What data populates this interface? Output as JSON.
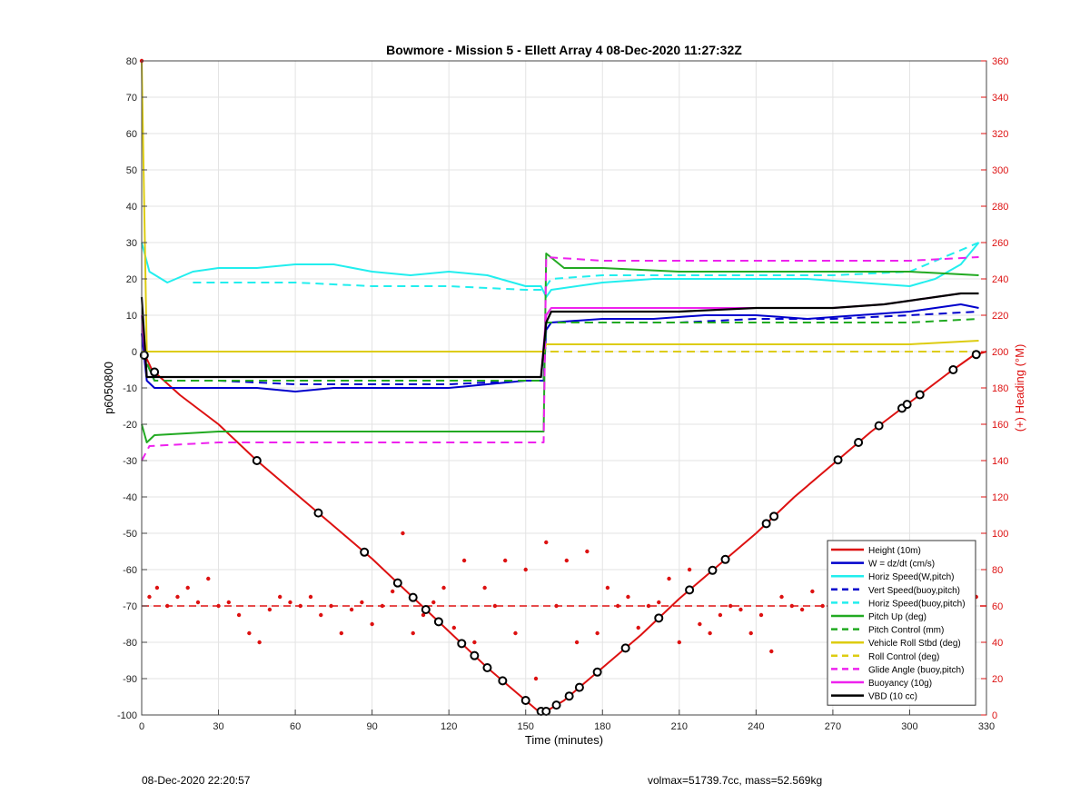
{
  "footer": {
    "timestamp": "08-Dec-2020 22:20:57",
    "stats": "volmax=51739.7cc, mass=52.569kg"
  },
  "chart_data": {
    "type": "line",
    "title": "Bowmore - Mission 5 - Ellett Array 4 08-Dec-2020 11:27:32Z",
    "xlabel": "Time (minutes)",
    "ylabel": "p6050800",
    "y2label": "(+) Heading (°M)",
    "xlim": [
      0,
      330
    ],
    "ylim": [
      -100,
      80
    ],
    "y2lim": [
      0,
      360
    ],
    "xticks": [
      0,
      30,
      60,
      90,
      120,
      150,
      180,
      210,
      240,
      270,
      300,
      330
    ],
    "yticks": [
      -100,
      -90,
      -80,
      -70,
      -60,
      -50,
      -40,
      -30,
      -20,
      -10,
      0,
      10,
      20,
      30,
      40,
      50,
      60,
      70,
      80
    ],
    "y2ticks": [
      0,
      20,
      40,
      60,
      80,
      100,
      120,
      140,
      160,
      180,
      200,
      220,
      240,
      260,
      280,
      300,
      320,
      340,
      360
    ],
    "grid": true,
    "legend_position": "bottom-right",
    "colors": {
      "red": "#dd1111",
      "blue": "#0000cc",
      "cyan": "#22eeee",
      "green": "#22aa22",
      "yellow": "#ddcc11",
      "magenta": "#ee22ee",
      "black": "#000000"
    },
    "series": [
      {
        "name": "Height (10m)",
        "color": "#dd1111",
        "style": "solid",
        "x": [
          0,
          2,
          4,
          15,
          30,
          45,
          60,
          75,
          90,
          105,
          120,
          135,
          150,
          155,
          158,
          165,
          180,
          195,
          210,
          225,
          240,
          255,
          270,
          285,
          300,
          315,
          325,
          330
        ],
        "y": [
          0,
          -2,
          -5,
          -12,
          -20,
          -30,
          -39,
          -48,
          -57,
          -67,
          -77,
          -87,
          -96,
          -99,
          -99,
          -96,
          -87,
          -78,
          -68,
          -59,
          -50,
          -40,
          -31,
          -22,
          -14,
          -6,
          -1,
          0
        ]
      },
      {
        "name": "W = dz/dt (cm/s)",
        "color": "#0000cc",
        "style": "solid",
        "x": [
          0,
          2,
          5,
          15,
          30,
          45,
          60,
          75,
          90,
          105,
          120,
          135,
          150,
          157,
          158,
          160,
          180,
          200,
          220,
          240,
          260,
          280,
          300,
          310,
          320,
          327
        ],
        "y": [
          5,
          -8,
          -10,
          -10,
          -10,
          -10,
          -11,
          -10,
          -10,
          -10,
          -10,
          -9,
          -8,
          -8,
          6,
          8,
          9,
          9,
          10,
          10,
          9,
          10,
          11,
          12,
          13,
          12
        ]
      },
      {
        "name": "Horiz Speed(W,pitch)",
        "color": "#22eeee",
        "style": "solid",
        "x": [
          0,
          3,
          10,
          20,
          30,
          45,
          60,
          75,
          90,
          105,
          120,
          135,
          150,
          156,
          158,
          160,
          180,
          200,
          220,
          240,
          260,
          280,
          300,
          310,
          320,
          327
        ],
        "y": [
          30,
          22,
          19,
          22,
          23,
          23,
          24,
          24,
          22,
          21,
          22,
          21,
          18,
          18,
          15,
          17,
          19,
          20,
          20,
          20,
          20,
          19,
          18,
          20,
          24,
          30
        ]
      },
      {
        "name": "Vert Speed(buoy,pitch)",
        "color": "#0000cc",
        "style": "dashed",
        "x": [
          0,
          5,
          30,
          60,
          90,
          120,
          150,
          157,
          158,
          180,
          210,
          240,
          270,
          300,
          327
        ],
        "y": [
          0,
          -8,
          -8,
          -9,
          -9,
          -9,
          -8,
          -8,
          8,
          8,
          8,
          9,
          9,
          10,
          11
        ]
      },
      {
        "name": "Horiz Speed(buoy,pitch)",
        "color": "#22eeee",
        "style": "dashed",
        "x": [
          20,
          60,
          90,
          120,
          150,
          157,
          160,
          180,
          210,
          240,
          270,
          300,
          327
        ],
        "y": [
          19,
          19,
          18,
          18,
          17,
          17,
          20,
          21,
          21,
          21,
          21,
          22,
          30
        ]
      },
      {
        "name": "Pitch Up (deg)",
        "color": "#22aa22",
        "style": "solid",
        "x": [
          0,
          2,
          5,
          30,
          60,
          90,
          120,
          150,
          157,
          158,
          165,
          180,
          210,
          240,
          270,
          300,
          327
        ],
        "y": [
          -20,
          -25,
          -23,
          -22,
          -22,
          -22,
          -22,
          -22,
          -22,
          27,
          23,
          23,
          22,
          22,
          22,
          22,
          21
        ]
      },
      {
        "name": "Pitch Control (mm)",
        "color": "#22aa22",
        "style": "dashed",
        "x": [
          0,
          5,
          30,
          60,
          90,
          120,
          150,
          157,
          158,
          180,
          210,
          240,
          270,
          300,
          327
        ],
        "y": [
          0,
          -8,
          -8,
          -8,
          -8,
          -8,
          -8,
          -8,
          8,
          8,
          8,
          8,
          8,
          8,
          9
        ]
      },
      {
        "name": "Vehicle Roll Stbd (deg)",
        "color": "#ddcc11",
        "style": "solid",
        "x": [
          0,
          2,
          5,
          30,
          60,
          90,
          120,
          150,
          157,
          158,
          180,
          210,
          240,
          270,
          300,
          327
        ],
        "y": [
          80,
          0,
          0,
          0,
          0,
          0,
          0,
          0,
          0,
          2,
          2,
          2,
          2,
          2,
          2,
          3
        ]
      },
      {
        "name": "Roll Control (deg)",
        "color": "#ddcc11",
        "style": "dashed",
        "x": [
          0,
          5,
          60,
          120,
          157,
          158,
          210,
          270,
          327
        ],
        "y": [
          0,
          0,
          0,
          0,
          0,
          0,
          0,
          0,
          0
        ]
      },
      {
        "name": "Glide Angle (buoy,pitch)",
        "color": "#ee22ee",
        "style": "dashed",
        "x": [
          0,
          3,
          30,
          60,
          90,
          120,
          150,
          157,
          158,
          180,
          210,
          240,
          270,
          300,
          327
        ],
        "y": [
          -30,
          -26,
          -25,
          -25,
          -25,
          -25,
          -25,
          -25,
          26,
          25,
          25,
          25,
          25,
          25,
          26
        ]
      },
      {
        "name": "Buoyancy (10g)",
        "color": "#ee22ee",
        "style": "solid",
        "x": [
          0,
          2,
          30,
          60,
          90,
          120,
          150,
          156,
          158,
          160,
          180,
          210,
          240,
          270,
          290,
          300,
          310,
          320,
          327
        ],
        "y": [
          10,
          -7,
          -7,
          -7,
          -7,
          -7,
          -7,
          -7,
          10,
          12,
          12,
          12,
          12,
          12,
          13,
          14,
          15,
          16,
          16
        ]
      },
      {
        "name": "VBD (10 cc)",
        "color": "#000000",
        "style": "solid",
        "x": [
          0,
          2,
          30,
          60,
          90,
          120,
          150,
          156,
          158,
          160,
          180,
          210,
          240,
          270,
          290,
          300,
          310,
          320,
          327
        ],
        "y": [
          15,
          -7,
          -7,
          -7,
          -7,
          -7,
          -7,
          -7,
          8,
          11,
          11,
          11,
          12,
          12,
          13,
          14,
          15,
          16,
          16
        ]
      }
    ],
    "heading_reference": {
      "axis": "y2",
      "value": 60,
      "color": "#dd1111",
      "style": "dashed"
    },
    "heading_points": {
      "axis": "y2",
      "color": "#dd1111",
      "x": [
        0,
        3,
        6,
        10,
        14,
        18,
        22,
        26,
        30,
        34,
        38,
        42,
        46,
        50,
        54,
        58,
        62,
        66,
        70,
        74,
        78,
        82,
        86,
        90,
        94,
        98,
        102,
        106,
        110,
        114,
        118,
        122,
        126,
        130,
        134,
        138,
        142,
        146,
        150,
        154,
        158,
        162,
        166,
        170,
        174,
        178,
        182,
        186,
        190,
        194,
        198,
        202,
        206,
        210,
        214,
        218,
        222,
        226,
        230,
        234,
        238,
        242,
        246,
        250,
        254,
        258,
        262,
        266,
        270,
        274,
        278,
        282,
        286,
        290,
        294,
        298,
        302,
        306,
        310,
        314,
        318,
        322,
        326
      ],
      "y": [
        360,
        65,
        70,
        60,
        65,
        70,
        62,
        75,
        60,
        62,
        55,
        45,
        40,
        58,
        65,
        62,
        60,
        65,
        55,
        60,
        45,
        58,
        62,
        50,
        60,
        68,
        100,
        45,
        55,
        62,
        70,
        48,
        85,
        40,
        70,
        60,
        85,
        45,
        80,
        20,
        95,
        60,
        85,
        40,
        90,
        45,
        70,
        60,
        65,
        48,
        60,
        62,
        75,
        40,
        80,
        50,
        45,
        55,
        60,
        58,
        45,
        55,
        35,
        65,
        60,
        58,
        68,
        60,
        55,
        62,
        45,
        50,
        65,
        55,
        45,
        60,
        55,
        70,
        50,
        75,
        55,
        80,
        65
      ]
    },
    "dive_markers_x": [
      1,
      5,
      45,
      69,
      87,
      100,
      106,
      111,
      116,
      125,
      130,
      135,
      141,
      150,
      156,
      158,
      162,
      167,
      171,
      178,
      189,
      202,
      214,
      223,
      228,
      244,
      247,
      272,
      280,
      288,
      297,
      299,
      304,
      317,
      326
    ]
  }
}
